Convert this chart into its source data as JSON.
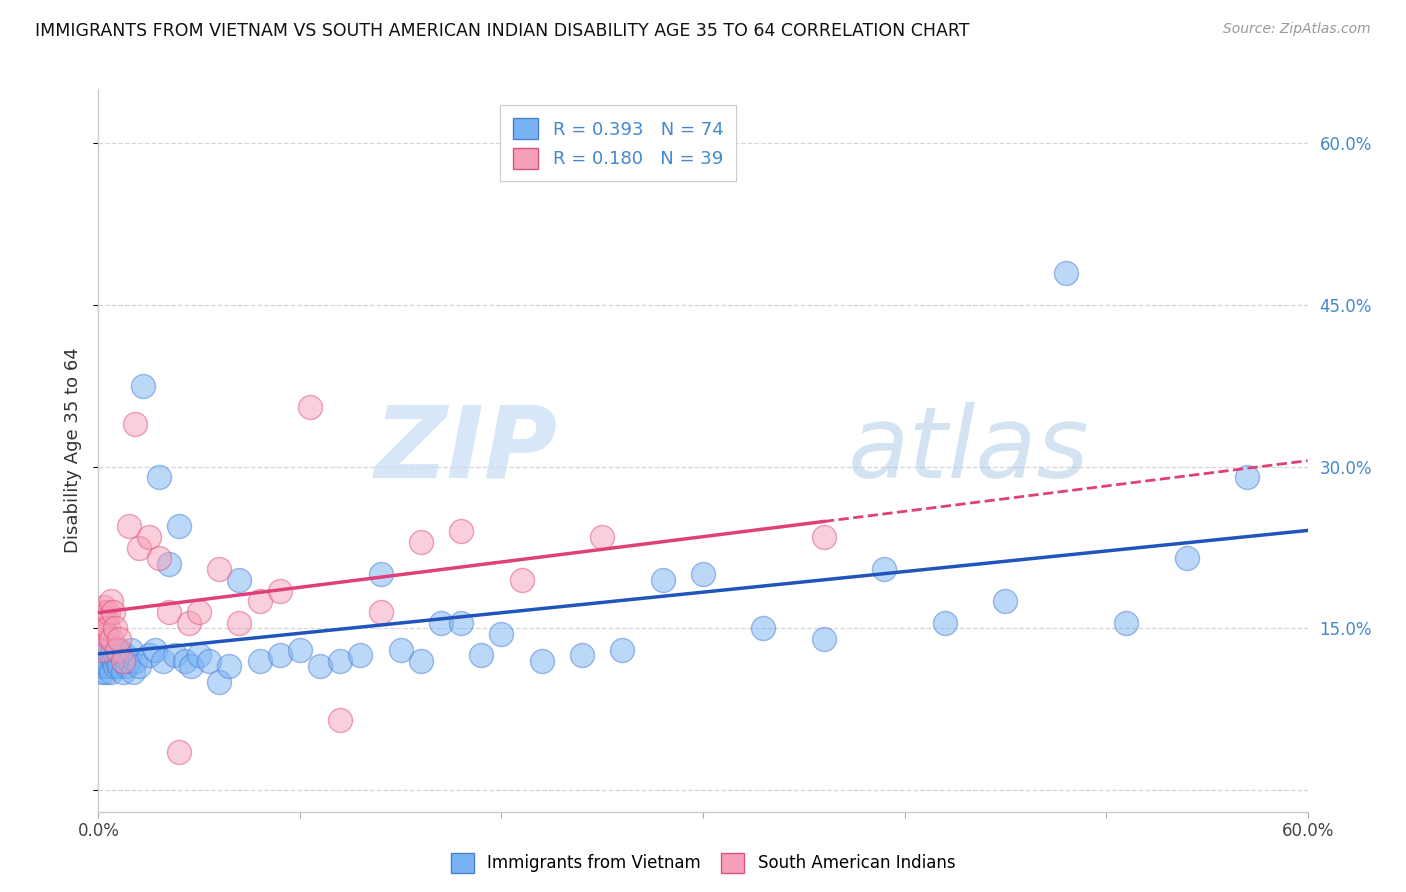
{
  "title": "IMMIGRANTS FROM VIETNAM VS SOUTH AMERICAN INDIAN DISABILITY AGE 35 TO 64 CORRELATION CHART",
  "source": "Source: ZipAtlas.com",
  "ylabel": "Disability Age 35 to 64",
  "xlim": [
    0.0,
    0.6
  ],
  "ylim": [
    -0.02,
    0.65
  ],
  "xticks": [
    0.0,
    0.1,
    0.2,
    0.3,
    0.4,
    0.5,
    0.6
  ],
  "xtick_labels": [
    "0.0%",
    "",
    "",
    "",
    "",
    "",
    "60.0%"
  ],
  "yticks_right": [
    0.0,
    0.15,
    0.3,
    0.45,
    0.6
  ],
  "ytick_labels_right": [
    "",
    "15.0%",
    "30.0%",
    "45.0%",
    "60.0%"
  ],
  "blue_color": "#7ab3f5",
  "pink_color": "#f5a0b8",
  "blue_edge_color": "#4a7fd4",
  "pink_edge_color": "#e05080",
  "blue_line_color": "#2255bb",
  "pink_line_color": "#e0407a",
  "right_axis_color": "#4488cc",
  "series1_label": "Immigrants from Vietnam",
  "series2_label": "South American Indians",
  "watermark_zip": "ZIP",
  "watermark_atlas": "atlas",
  "blue_x": [
    0.001,
    0.001,
    0.002,
    0.002,
    0.002,
    0.003,
    0.003,
    0.003,
    0.004,
    0.004,
    0.004,
    0.005,
    0.005,
    0.005,
    0.006,
    0.006,
    0.007,
    0.007,
    0.008,
    0.008,
    0.009,
    0.01,
    0.01,
    0.011,
    0.012,
    0.013,
    0.014,
    0.015,
    0.016,
    0.017,
    0.018,
    0.02,
    0.022,
    0.025,
    0.028,
    0.03,
    0.032,
    0.035,
    0.038,
    0.04,
    0.043,
    0.046,
    0.05,
    0.055,
    0.06,
    0.065,
    0.07,
    0.08,
    0.09,
    0.1,
    0.11,
    0.12,
    0.13,
    0.14,
    0.15,
    0.16,
    0.17,
    0.18,
    0.19,
    0.2,
    0.22,
    0.24,
    0.26,
    0.28,
    0.3,
    0.33,
    0.36,
    0.39,
    0.42,
    0.45,
    0.48,
    0.51,
    0.54,
    0.57
  ],
  "blue_y": [
    0.13,
    0.115,
    0.125,
    0.11,
    0.14,
    0.12,
    0.135,
    0.115,
    0.125,
    0.11,
    0.13,
    0.12,
    0.115,
    0.13,
    0.125,
    0.11,
    0.12,
    0.13,
    0.115,
    0.125,
    0.12,
    0.115,
    0.13,
    0.125,
    0.11,
    0.125,
    0.115,
    0.12,
    0.13,
    0.11,
    0.12,
    0.115,
    0.375,
    0.125,
    0.13,
    0.29,
    0.12,
    0.21,
    0.125,
    0.245,
    0.12,
    0.115,
    0.125,
    0.12,
    0.1,
    0.115,
    0.195,
    0.12,
    0.125,
    0.13,
    0.115,
    0.12,
    0.125,
    0.2,
    0.13,
    0.12,
    0.155,
    0.155,
    0.125,
    0.145,
    0.12,
    0.125,
    0.13,
    0.195,
    0.2,
    0.15,
    0.14,
    0.205,
    0.155,
    0.175,
    0.48,
    0.155,
    0.215,
    0.29
  ],
  "pink_x": [
    0.001,
    0.001,
    0.002,
    0.002,
    0.003,
    0.003,
    0.003,
    0.004,
    0.004,
    0.005,
    0.005,
    0.006,
    0.006,
    0.007,
    0.008,
    0.009,
    0.01,
    0.012,
    0.015,
    0.018,
    0.02,
    0.025,
    0.03,
    0.035,
    0.04,
    0.045,
    0.05,
    0.06,
    0.07,
    0.08,
    0.09,
    0.105,
    0.12,
    0.14,
    0.16,
    0.18,
    0.21,
    0.25,
    0.36
  ],
  "pink_y": [
    0.145,
    0.16,
    0.155,
    0.13,
    0.165,
    0.15,
    0.17,
    0.16,
    0.145,
    0.165,
    0.15,
    0.175,
    0.14,
    0.165,
    0.15,
    0.13,
    0.14,
    0.12,
    0.245,
    0.34,
    0.225,
    0.235,
    0.215,
    0.165,
    0.035,
    0.155,
    0.165,
    0.205,
    0.155,
    0.175,
    0.185,
    0.355,
    0.065,
    0.165,
    0.23,
    0.24,
    0.195,
    0.235,
    0.235
  ]
}
